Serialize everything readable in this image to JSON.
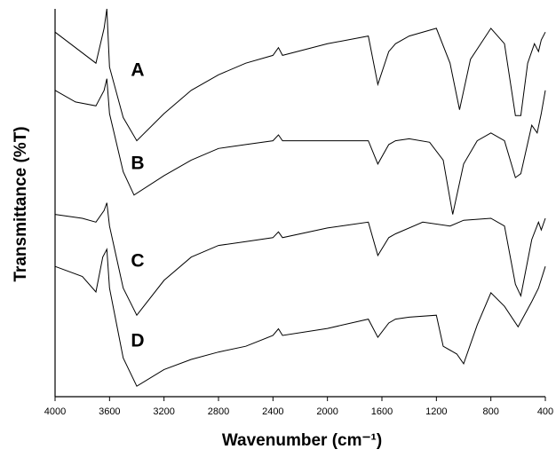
{
  "chart_data": {
    "type": "line",
    "xlabel": "Wavenumber (cm⁻¹)",
    "ylabel": "Transmittance (%T)",
    "xlim": [
      4000,
      400
    ],
    "xticks": [
      4000,
      3600,
      3200,
      2800,
      2400,
      2000,
      1600,
      1200,
      800,
      400
    ],
    "ylim": [
      0,
      100
    ],
    "series": [
      {
        "name": "A",
        "color": "#000000",
        "x": [
          4000,
          3850,
          3700,
          3640,
          3620,
          3600,
          3500,
          3400,
          3200,
          3000,
          2800,
          2600,
          2400,
          2360,
          2330,
          2000,
          1700,
          1630,
          1550,
          1500,
          1400,
          1200,
          1100,
          1030,
          950,
          800,
          700,
          620,
          580,
          530,
          480,
          450,
          430,
          400
        ],
        "values": [
          94,
          90,
          86,
          95,
          100,
          85,
          72,
          66,
          73,
          79,
          83,
          86,
          88,
          90,
          88,
          91,
          93,
          80.5,
          89,
          91,
          93,
          95,
          86,
          74,
          87,
          95,
          91,
          72.5,
          72.5,
          86,
          91,
          89,
          92,
          94
        ]
      },
      {
        "name": "B",
        "color": "#000000",
        "x": [
          4000,
          3850,
          3700,
          3640,
          3620,
          3600,
          3500,
          3420,
          3200,
          3000,
          2800,
          2600,
          2400,
          2360,
          2330,
          2000,
          1700,
          1630,
          1550,
          1500,
          1400,
          1250,
          1150,
          1080,
          1000,
          900,
          800,
          700,
          620,
          580,
          500,
          460,
          430,
          400
        ],
        "values": [
          79,
          76,
          75,
          79,
          82,
          73,
          58,
          52,
          57,
          61,
          64,
          65,
          66,
          67.5,
          66,
          66,
          66,
          60,
          65,
          66,
          66.5,
          65.6,
          61,
          47,
          60,
          66,
          68,
          66,
          56.5,
          57.5,
          70,
          68,
          73,
          79
        ]
      },
      {
        "name": "C",
        "color": "#000000",
        "x": [
          4000,
          3800,
          3700,
          3640,
          3620,
          3600,
          3500,
          3400,
          3200,
          3000,
          2800,
          2600,
          2400,
          2360,
          2330,
          2000,
          1700,
          1630,
          1550,
          1500,
          1300,
          1100,
          1000,
          800,
          700,
          620,
          580,
          500,
          450,
          430,
          400
        ],
        "values": [
          47,
          46,
          45,
          48,
          50,
          44,
          28,
          21,
          30,
          36,
          39,
          40,
          41,
          42.5,
          41,
          43.5,
          45,
          36.4,
          41,
          42,
          45,
          44,
          45.5,
          46,
          44,
          29,
          26,
          40.5,
          45,
          43,
          46
        ]
      },
      {
        "name": "D",
        "color": "#000000",
        "x": [
          4000,
          3800,
          3700,
          3650,
          3620,
          3600,
          3500,
          3400,
          3200,
          3000,
          2800,
          2600,
          2400,
          2360,
          2330,
          2000,
          1700,
          1630,
          1550,
          1500,
          1400,
          1200,
          1150,
          1050,
          1000,
          900,
          800,
          700,
          600,
          500,
          450,
          400
        ],
        "values": [
          33.6,
          31,
          27,
          36,
          38,
          28,
          10,
          2.7,
          7,
          9.6,
          11.5,
          13,
          15.8,
          17.5,
          15.8,
          17.6,
          20,
          15.3,
          19,
          20,
          20.5,
          21,
          13,
          11,
          8.5,
          18.5,
          26.8,
          23.3,
          18,
          24.5,
          28,
          33.6
        ]
      }
    ]
  }
}
